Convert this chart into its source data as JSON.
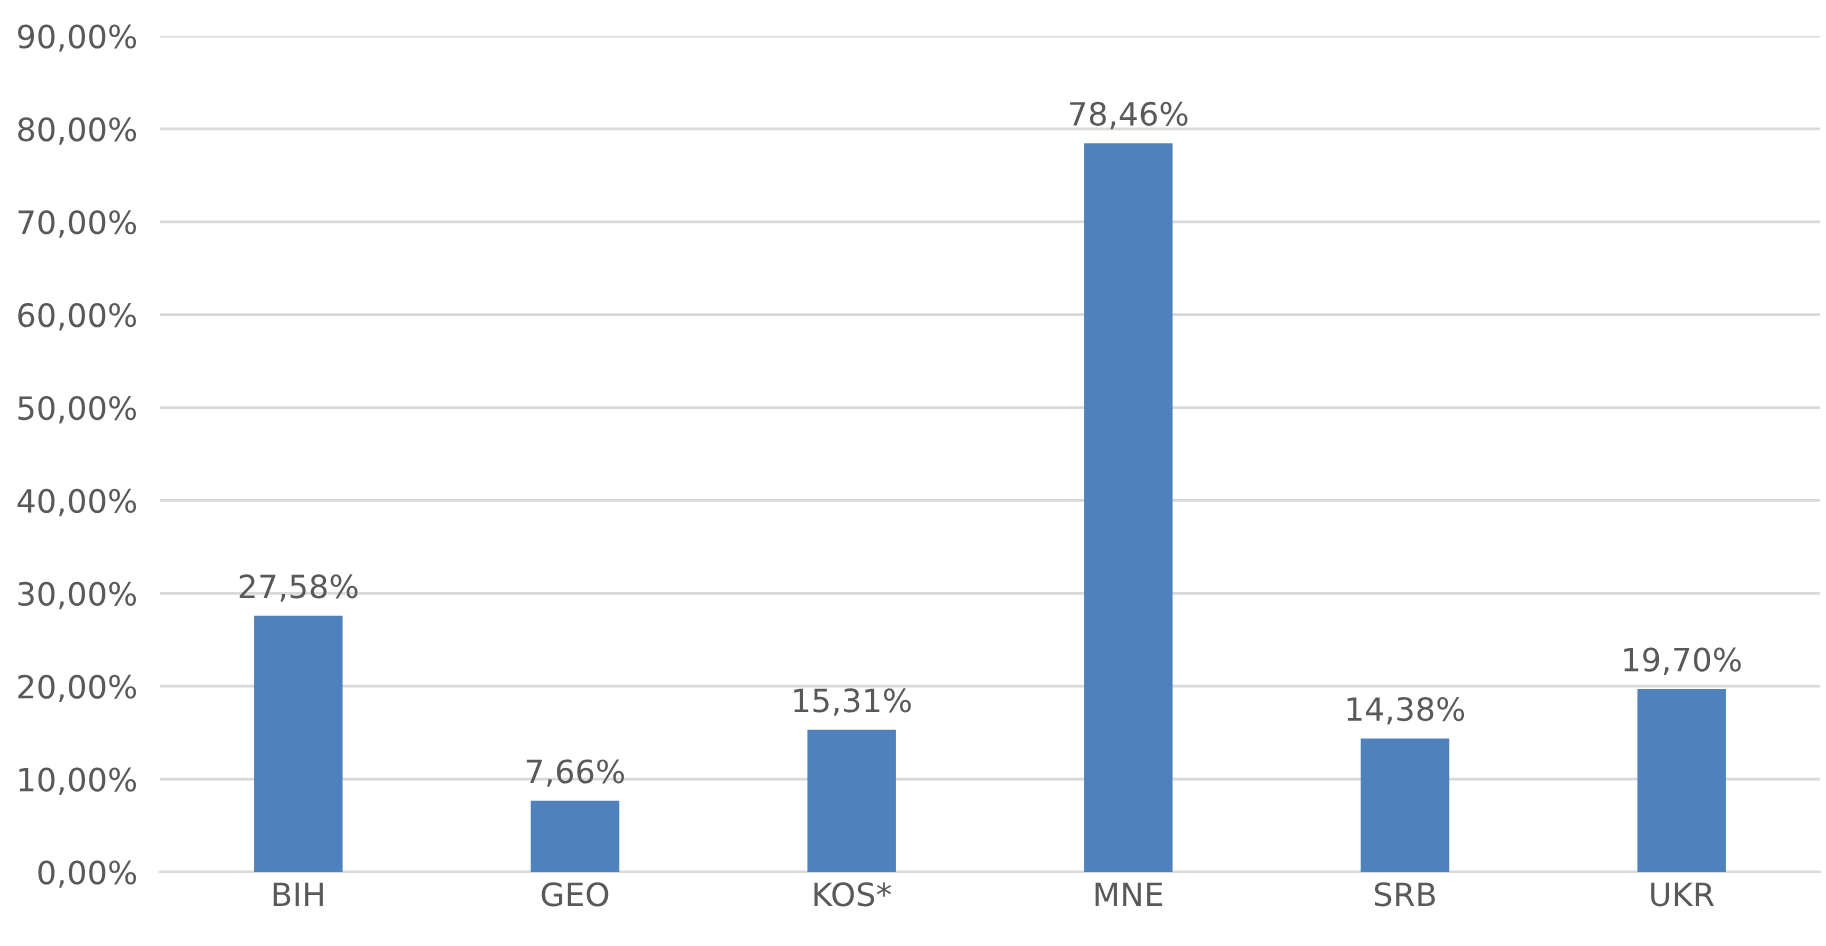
{
  "chart_data": {
    "type": "bar",
    "categories": [
      "BIH",
      "GEO",
      "KOS*",
      "MNE",
      "SRB",
      "UKR"
    ],
    "values": [
      27.58,
      7.66,
      15.31,
      78.46,
      14.38,
      19.7
    ],
    "value_labels": [
      "27,58%",
      "7,66%",
      "15,31%",
      "78,46%",
      "14,38%",
      "19,70%"
    ],
    "color": "#4f81bd",
    "ylim": [
      0,
      90
    ],
    "yticks": [
      {
        "value": 0,
        "label": "0,00%"
      },
      {
        "value": 10,
        "label": "10,00%"
      },
      {
        "value": 20,
        "label": "20,00%"
      },
      {
        "value": 30,
        "label": "30,00%"
      },
      {
        "value": 40,
        "label": "40,00%"
      },
      {
        "value": 50,
        "label": "50,00%"
      },
      {
        "value": 60,
        "label": "60,00%"
      },
      {
        "value": 70,
        "label": "70,00%"
      },
      {
        "value": 80,
        "label": "80,00%"
      },
      {
        "value": 90,
        "label": "90,00%"
      }
    ],
    "grid": "y"
  }
}
